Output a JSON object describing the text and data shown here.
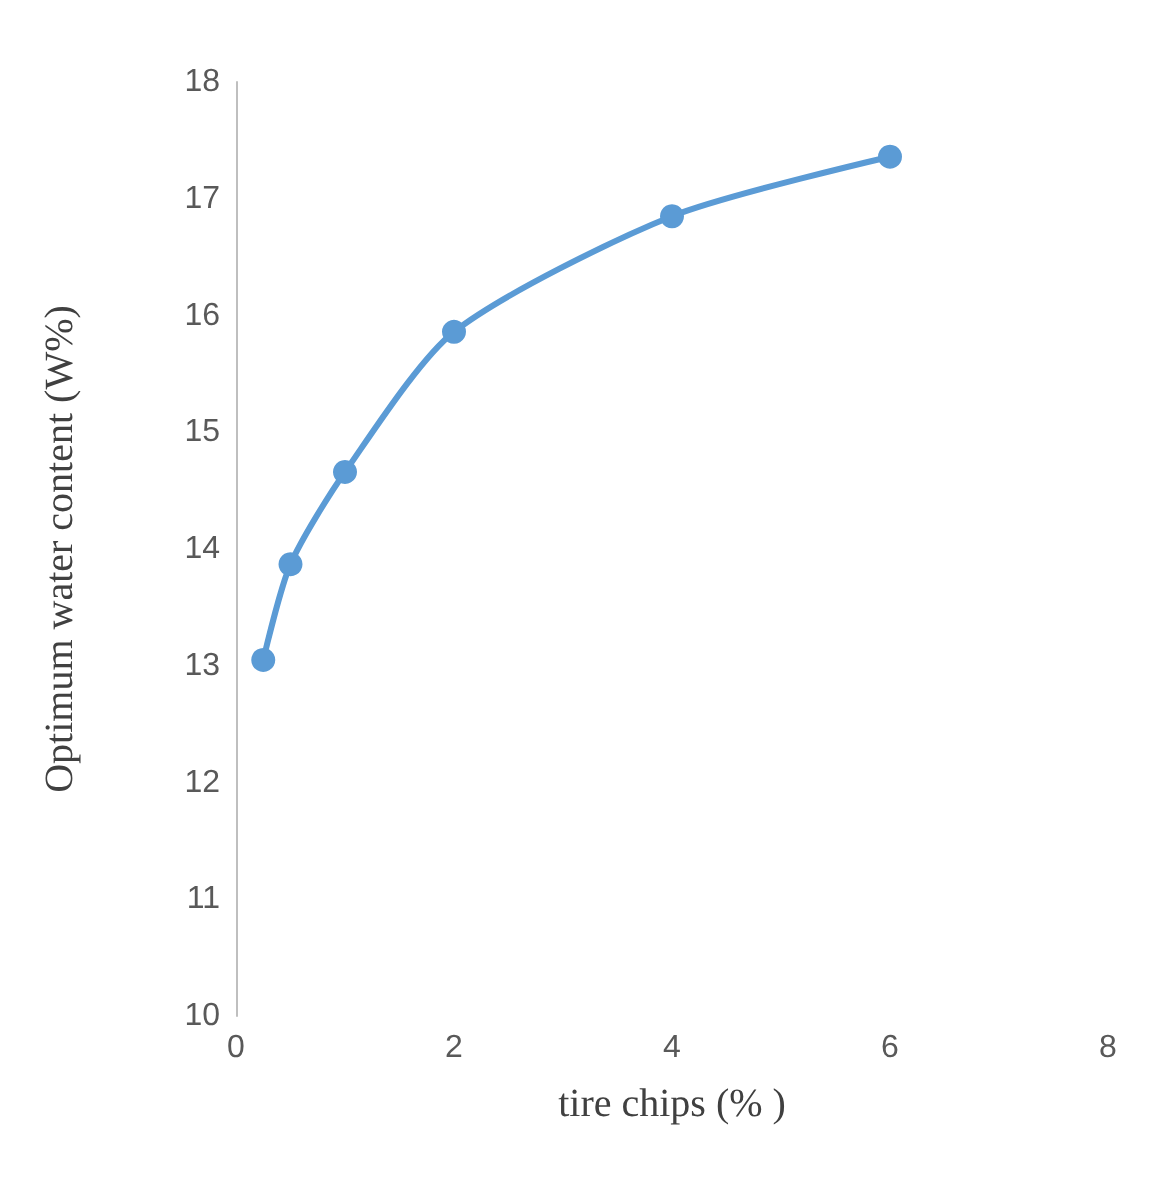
{
  "chart_data": {
    "type": "line",
    "xlabel": "tire chips (% )",
    "ylabel": "Optimum water content (W%)",
    "x": [
      0.25,
      0.5,
      1,
      2,
      4,
      6
    ],
    "series": [
      {
        "color": "#5b9bd5",
        "values": [
          13.05,
          13.87,
          14.66,
          15.86,
          16.85,
          17.36
        ]
      }
    ],
    "xlim": [
      0,
      8
    ],
    "xticks": [
      0,
      2,
      4,
      6,
      8
    ],
    "ylim": [
      10,
      18
    ],
    "yticks": [
      10,
      11,
      12,
      13,
      14,
      15,
      16,
      17,
      18
    ],
    "grid": false,
    "marker": "circle",
    "line_style": "solid"
  }
}
